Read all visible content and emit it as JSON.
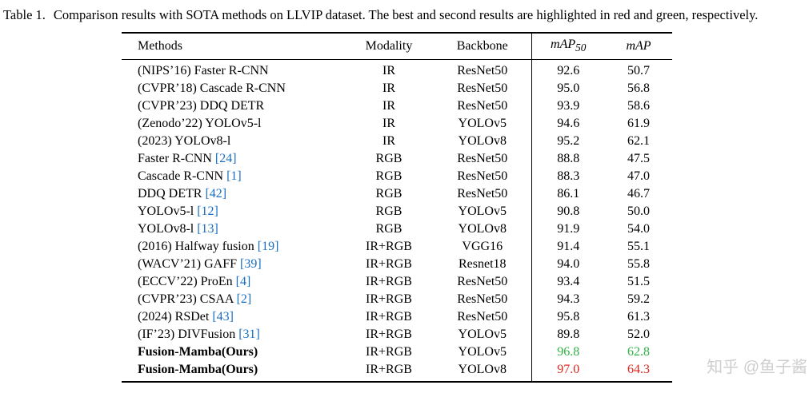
{
  "caption": {
    "label": "Table 1.",
    "text": "Comparison results with SOTA methods on LLVIP dataset. The best and second results are highlighted in red and green, respectively."
  },
  "table": {
    "headers": {
      "methods": "Methods",
      "modality": "Modality",
      "backbone": "Backbone",
      "map50_base": "mAP",
      "map50_sub": "50",
      "map": "mAP"
    },
    "rows": [
      {
        "method": "(NIPS’16) Faster R-CNN",
        "ref": "",
        "modality": "IR",
        "backbone": "ResNet50",
        "map50": "92.6",
        "map": "50.7",
        "bold": false,
        "map50_hl": "none",
        "map_hl": "none"
      },
      {
        "method": "(CVPR’18) Cascade R-CNN",
        "ref": "",
        "modality": "IR",
        "backbone": "ResNet50",
        "map50": "95.0",
        "map": "56.8",
        "bold": false,
        "map50_hl": "none",
        "map_hl": "none"
      },
      {
        "method": "(CVPR’23) DDQ DETR",
        "ref": "",
        "modality": "IR",
        "backbone": "ResNet50",
        "map50": "93.9",
        "map": "58.6",
        "bold": false,
        "map50_hl": "none",
        "map_hl": "none"
      },
      {
        "method": "(Zenodo’22) YOLOv5-l",
        "ref": "",
        "modality": "IR",
        "backbone": "YOLOv5",
        "map50": "94.6",
        "map": "61.9",
        "bold": false,
        "map50_hl": "none",
        "map_hl": "none"
      },
      {
        "method": "(2023) YOLOv8-l",
        "ref": "",
        "modality": "IR",
        "backbone": "YOLOv8",
        "map50": "95.2",
        "map": "62.1",
        "bold": false,
        "map50_hl": "none",
        "map_hl": "none"
      },
      {
        "method": "Faster R-CNN",
        "ref": "[24]",
        "modality": "RGB",
        "backbone": "ResNet50",
        "map50": "88.8",
        "map": "47.5",
        "bold": false,
        "map50_hl": "none",
        "map_hl": "none"
      },
      {
        "method": "Cascade R-CNN",
        "ref": "[1]",
        "modality": "RGB",
        "backbone": "ResNet50",
        "map50": "88.3",
        "map": "47.0",
        "bold": false,
        "map50_hl": "none",
        "map_hl": "none"
      },
      {
        "method": "DDQ DETR",
        "ref": "[42]",
        "modality": "RGB",
        "backbone": "ResNet50",
        "map50": "86.1",
        "map": "46.7",
        "bold": false,
        "map50_hl": "none",
        "map_hl": "none"
      },
      {
        "method": "YOLOv5-l",
        "ref": "[12]",
        "modality": "RGB",
        "backbone": "YOLOv5",
        "map50": "90.8",
        "map": "50.0",
        "bold": false,
        "map50_hl": "none",
        "map_hl": "none"
      },
      {
        "method": "YOLOv8-l",
        "ref": "[13]",
        "modality": "RGB",
        "backbone": "YOLOv8",
        "map50": "91.9",
        "map": "54.0",
        "bold": false,
        "map50_hl": "none",
        "map_hl": "none"
      },
      {
        "method": "(2016) Halfway fusion",
        "ref": "[19]",
        "modality": "IR+RGB",
        "backbone": "VGG16",
        "map50": "91.4",
        "map": "55.1",
        "bold": false,
        "map50_hl": "none",
        "map_hl": "none"
      },
      {
        "method": "(WACV’21) GAFF",
        "ref": "[39]",
        "modality": "IR+RGB",
        "backbone": "Resnet18",
        "map50": "94.0",
        "map": "55.8",
        "bold": false,
        "map50_hl": "none",
        "map_hl": "none"
      },
      {
        "method": "(ECCV’22) ProEn",
        "ref": "[4]",
        "modality": "IR+RGB",
        "backbone": "ResNet50",
        "map50": "93.4",
        "map": "51.5",
        "bold": false,
        "map50_hl": "none",
        "map_hl": "none"
      },
      {
        "method": "(CVPR’23) CSAA",
        "ref": "[2]",
        "modality": "IR+RGB",
        "backbone": "ResNet50",
        "map50": "94.3",
        "map": "59.2",
        "bold": false,
        "map50_hl": "none",
        "map_hl": "none"
      },
      {
        "method": "(2024) RSDet",
        "ref": "[43]",
        "modality": "IR+RGB",
        "backbone": "ResNet50",
        "map50": "95.8",
        "map": "61.3",
        "bold": false,
        "map50_hl": "none",
        "map_hl": "none"
      },
      {
        "method": "(IF’23) DIVFusion",
        "ref": "[31]",
        "modality": "IR+RGB",
        "backbone": "YOLOv5",
        "map50": "89.8",
        "map": "52.0",
        "bold": false,
        "map50_hl": "none",
        "map_hl": "none"
      },
      {
        "method": "Fusion-Mamba(Ours)",
        "ref": "",
        "modality": "IR+RGB",
        "backbone": "YOLOv5",
        "map50": "96.8",
        "map": "62.8",
        "bold": true,
        "map50_hl": "second",
        "map_hl": "second"
      },
      {
        "method": "Fusion-Mamba(Ours)",
        "ref": "",
        "modality": "IR+RGB",
        "backbone": "YOLOv8",
        "map50": "97.0",
        "map": "64.3",
        "bold": true,
        "map50_hl": "best",
        "map_hl": "best"
      }
    ]
  },
  "colors": {
    "best": "#e0261c",
    "second": "#2fb344",
    "citation": "#1a6fc4",
    "watermark": "#cccccc"
  },
  "watermark": "知乎 @鱼子酱"
}
